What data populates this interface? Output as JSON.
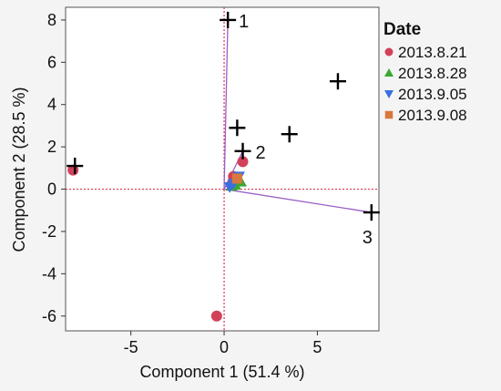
{
  "chart_data": {
    "type": "scatter",
    "xlabel": "Component 1  (51.4 %)",
    "ylabel": "Component 2  (28.5 %)",
    "xlim": [
      -8.5,
      8.3
    ],
    "ylim": [
      -6.7,
      8.6
    ],
    "x_ticks": [
      -5,
      0,
      5
    ],
    "y_ticks": [
      8,
      6,
      4,
      2,
      0,
      -2,
      -4,
      -6
    ],
    "reference_lines": {
      "x": 0,
      "y": 0,
      "color": "#e0334d",
      "style": "dotted"
    },
    "legend": {
      "title": "Date",
      "position": "right",
      "entries": [
        {
          "name": "2013.8.21",
          "marker": "circle",
          "color": "#d2415a"
        },
        {
          "name": "2013.8.28",
          "marker": "triangle-up",
          "color": "#3aa832"
        },
        {
          "name": "2013.9.05",
          "marker": "triangle-down",
          "color": "#3a6fe0"
        },
        {
          "name": "2013.9.08",
          "marker": "square",
          "color": "#d9783c"
        }
      ]
    },
    "series": [
      {
        "name": "2013.8.21",
        "marker": "circle",
        "color": "#d2415a",
        "points": [
          [
            -8.1,
            0.9
          ],
          [
            -0.4,
            -6.0
          ],
          [
            1.0,
            1.3
          ],
          [
            0.5,
            0.6
          ],
          [
            0.4,
            0.2
          ]
        ]
      },
      {
        "name": "2013.8.28",
        "marker": "triangle-up",
        "color": "#3aa832",
        "points": [
          [
            0.4,
            0.15
          ],
          [
            0.9,
            0.35
          ],
          [
            0.6,
            0.2
          ]
        ]
      },
      {
        "name": "2013.9.05",
        "marker": "triangle-down",
        "color": "#3a6fe0",
        "points": [
          [
            0.8,
            0.6
          ],
          [
            0.5,
            0.25
          ],
          [
            0.3,
            0.1
          ]
        ]
      },
      {
        "name": "2013.9.08",
        "marker": "square",
        "color": "#d9783c",
        "points": [
          [
            0.7,
            0.5
          ]
        ]
      }
    ],
    "plus_markers": [
      [
        -8.0,
        1.1
      ],
      [
        0.2,
        8.0
      ],
      [
        0.7,
        2.9
      ],
      [
        1.0,
        1.8
      ],
      [
        3.5,
        2.6
      ],
      [
        6.1,
        5.1
      ],
      [
        7.9,
        -1.1
      ]
    ],
    "loading_vectors": [
      {
        "label": "1",
        "x": 0.2,
        "y": 8.0
      },
      {
        "label": "2",
        "x": 1.0,
        "y": 1.8
      },
      {
        "label": "3",
        "x": 7.9,
        "y": -1.1
      }
    ]
  }
}
